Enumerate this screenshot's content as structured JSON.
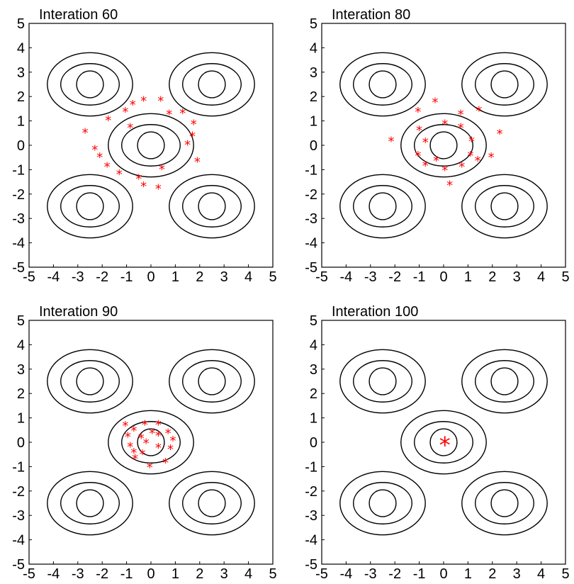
{
  "colors": {
    "marker": "#ff0000",
    "contour": "#000000",
    "background": "#ffffff"
  },
  "chart_data": [
    {
      "type": "scatter",
      "title": "Interation 60",
      "xlim": [
        -5,
        5
      ],
      "ylim": [
        -5,
        5
      ],
      "xticks": [
        -5,
        -4,
        -3,
        -2,
        -1,
        0,
        1,
        2,
        3,
        4,
        5
      ],
      "yticks": [
        -5,
        -4,
        -3,
        -2,
        -1,
        0,
        1,
        2,
        3,
        4,
        5
      ],
      "grid": false,
      "contour_centers": [
        [
          -2.5,
          2.5
        ],
        [
          2.5,
          2.5
        ],
        [
          0,
          0
        ],
        [
          -2.5,
          -2.5
        ],
        [
          2.5,
          -2.5
        ]
      ],
      "marker": "*",
      "points": [
        [
          -2.7,
          0.6
        ],
        [
          -2.3,
          -0.1
        ],
        [
          -2.1,
          -0.4
        ],
        [
          -1.8,
          -0.8
        ],
        [
          -1.75,
          1.1
        ],
        [
          -1.3,
          -1.1
        ],
        [
          -1.05,
          1.45
        ],
        [
          -0.85,
          0.8
        ],
        [
          -0.75,
          1.75
        ],
        [
          -0.5,
          -1.3
        ],
        [
          -0.3,
          1.9
        ],
        [
          -0.3,
          -1.6
        ],
        [
          0.3,
          -1.7
        ],
        [
          0.4,
          1.9
        ],
        [
          0.45,
          -0.9
        ],
        [
          0.75,
          1.35
        ],
        [
          1.3,
          1.4
        ],
        [
          1.75,
          0.95
        ],
        [
          1.7,
          0.45
        ],
        [
          1.5,
          0.1
        ],
        [
          1.9,
          -0.6
        ]
      ]
    },
    {
      "type": "scatter",
      "title": "Interation 80",
      "xlim": [
        -5,
        5
      ],
      "ylim": [
        -5,
        5
      ],
      "xticks": [
        -5,
        -4,
        -3,
        -2,
        -1,
        0,
        1,
        2,
        3,
        4,
        5
      ],
      "yticks": [
        -5,
        -4,
        -3,
        -2,
        -1,
        0,
        1,
        2,
        3,
        4,
        5
      ],
      "grid": false,
      "contour_centers": [
        [
          -2.5,
          2.5
        ],
        [
          2.5,
          2.5
        ],
        [
          0,
          0
        ],
        [
          -2.5,
          -2.5
        ],
        [
          2.5,
          -2.5
        ]
      ],
      "marker": "*",
      "points": [
        [
          -2.15,
          0.25
        ],
        [
          -1.05,
          1.45
        ],
        [
          -1.0,
          0.7
        ],
        [
          -1.05,
          -0.35
        ],
        [
          -0.75,
          0.2
        ],
        [
          -0.75,
          -0.75
        ],
        [
          -0.35,
          1.85
        ],
        [
          -0.3,
          -0.55
        ],
        [
          0.05,
          0.95
        ],
        [
          0.05,
          -0.95
        ],
        [
          0.25,
          -1.55
        ],
        [
          0.7,
          0.8
        ],
        [
          0.7,
          1.35
        ],
        [
          0.75,
          -0.8
        ],
        [
          1.1,
          -0.35
        ],
        [
          1.15,
          0.25
        ],
        [
          1.4,
          -0.55
        ],
        [
          1.45,
          1.5
        ],
        [
          1.95,
          -0.4
        ],
        [
          2.3,
          0.55
        ]
      ]
    },
    {
      "type": "scatter",
      "title": "Interation 90",
      "xlim": [
        -5,
        5
      ],
      "ylim": [
        -5,
        5
      ],
      "xticks": [
        -5,
        -4,
        -3,
        -2,
        -1,
        0,
        1,
        2,
        3,
        4,
        5
      ],
      "yticks": [
        -5,
        -4,
        -3,
        -2,
        -1,
        0,
        1,
        2,
        3,
        4,
        5
      ],
      "grid": false,
      "contour_centers": [
        [
          -2.5,
          2.5
        ],
        [
          2.5,
          2.5
        ],
        [
          0,
          0
        ],
        [
          -2.5,
          -2.5
        ],
        [
          2.5,
          -2.5
        ]
      ],
      "marker": "*",
      "points": [
        [
          -1.05,
          0.75
        ],
        [
          -0.95,
          0.3
        ],
        [
          -0.85,
          -0.1
        ],
        [
          -0.7,
          0.55
        ],
        [
          -0.7,
          -0.35
        ],
        [
          -0.65,
          -0.6
        ],
        [
          -0.4,
          0.25
        ],
        [
          -0.35,
          -0.4
        ],
        [
          -0.25,
          0.8
        ],
        [
          -0.2,
          0.05
        ],
        [
          -0.05,
          -0.95
        ],
        [
          0.05,
          0.45
        ],
        [
          0.3,
          0.8
        ],
        [
          0.3,
          0.35
        ],
        [
          0.3,
          -0.15
        ],
        [
          0.6,
          -0.75
        ],
        [
          0.7,
          0.45
        ],
        [
          0.8,
          -0.2
        ],
        [
          0.9,
          0.15
        ]
      ]
    },
    {
      "type": "scatter",
      "title": "Interation 100",
      "xlim": [
        -5,
        5
      ],
      "ylim": [
        -5,
        5
      ],
      "xticks": [
        -5,
        -4,
        -3,
        -2,
        -1,
        0,
        1,
        2,
        3,
        4,
        5
      ],
      "yticks": [
        -5,
        -4,
        -3,
        -2,
        -1,
        0,
        1,
        2,
        3,
        4,
        5
      ],
      "grid": false,
      "contour_centers": [
        [
          -2.5,
          2.5
        ],
        [
          2.5,
          2.5
        ],
        [
          0,
          0
        ],
        [
          -2.5,
          -2.5
        ],
        [
          2.5,
          -2.5
        ]
      ],
      "marker": "*",
      "converged": true,
      "points": [
        [
          0.05,
          0.0
        ]
      ]
    }
  ]
}
